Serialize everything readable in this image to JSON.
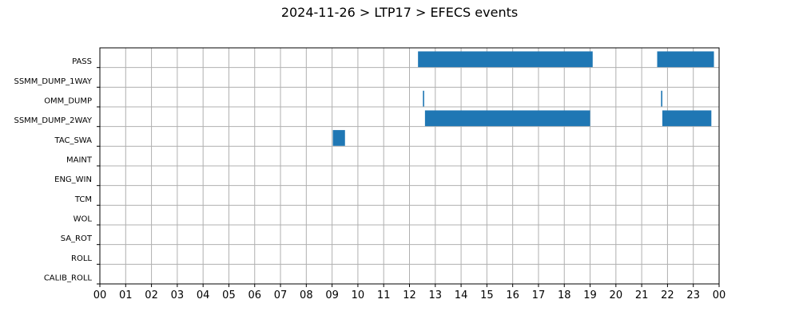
{
  "chart_data": {
    "type": "bar",
    "orientation": "horizontal-timeline",
    "title": "2024-11-26 > LTP17 > EFECS events",
    "xlabel": "",
    "ylabel": "",
    "xlim": [
      0,
      24
    ],
    "x_tick_labels": [
      "00",
      "01",
      "02",
      "03",
      "04",
      "05",
      "06",
      "07",
      "08",
      "09",
      "10",
      "11",
      "12",
      "13",
      "14",
      "15",
      "16",
      "17",
      "18",
      "19",
      "20",
      "21",
      "22",
      "23",
      "00"
    ],
    "categories": [
      "PASS",
      "SSMM_DUMP_1WAY",
      "OMM_DUMP",
      "SSMM_DUMP_2WAY",
      "TAC_SWA",
      "MAINT",
      "ENG_WIN",
      "TCM",
      "WOL",
      "SA_ROT",
      "ROLL",
      "CALIB_ROLL"
    ],
    "grid": true,
    "bar_color": "#1f77b4",
    "events": [
      {
        "category": "PASS",
        "start": 12.33,
        "end": 19.1
      },
      {
        "category": "PASS",
        "start": 21.6,
        "end": 23.8
      },
      {
        "category": "OMM_DUMP",
        "start": 12.52,
        "end": 12.57
      },
      {
        "category": "OMM_DUMP",
        "start": 21.75,
        "end": 21.8
      },
      {
        "category": "SSMM_DUMP_2WAY",
        "start": 12.6,
        "end": 19.0
      },
      {
        "category": "SSMM_DUMP_2WAY",
        "start": 21.8,
        "end": 23.7
      },
      {
        "category": "TAC_SWA",
        "start": 9.03,
        "end": 9.5
      }
    ]
  }
}
